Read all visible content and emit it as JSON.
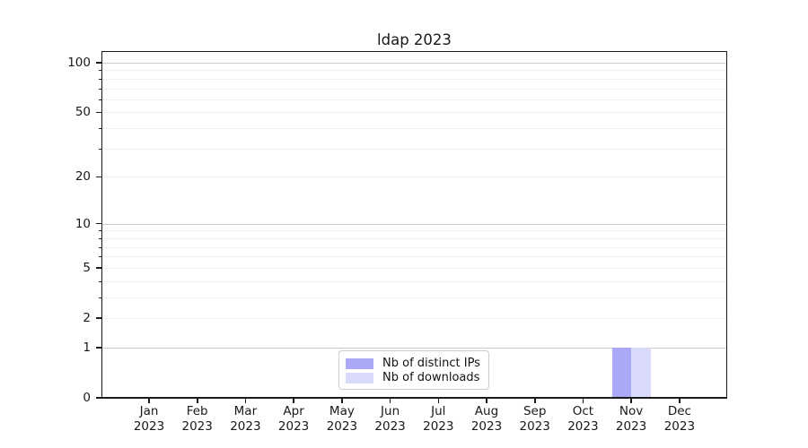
{
  "figure": {
    "background": "#ffffff",
    "spine_color": "#1a1a1a"
  },
  "chart_data": {
    "type": "bar",
    "title": "ldap 2023",
    "xlabel": "",
    "ylabel": "",
    "x_tick_labels": [
      {
        "month": "Jan",
        "year": "2023"
      },
      {
        "month": "Feb",
        "year": "2023"
      },
      {
        "month": "Mar",
        "year": "2023"
      },
      {
        "month": "Apr",
        "year": "2023"
      },
      {
        "month": "May",
        "year": "2023"
      },
      {
        "month": "Jun",
        "year": "2023"
      },
      {
        "month": "Jul",
        "year": "2023"
      },
      {
        "month": "Aug",
        "year": "2023"
      },
      {
        "month": "Sep",
        "year": "2023"
      },
      {
        "month": "Oct",
        "year": "2023"
      },
      {
        "month": "Nov",
        "year": "2023"
      },
      {
        "month": "Dec",
        "year": "2023"
      }
    ],
    "series": [
      {
        "name": "Nb of distinct IPs",
        "color": "#a9a9f7",
        "values": [
          0,
          0,
          0,
          0,
          0,
          0,
          0,
          0,
          0,
          0,
          1,
          0
        ]
      },
      {
        "name": "Nb of downloads",
        "color": "#d9d9f9",
        "values": [
          0,
          0,
          0,
          0,
          0,
          0,
          0,
          0,
          0,
          0,
          1,
          0
        ]
      }
    ],
    "y_axis": {
      "scale": "log1p",
      "ylim": [
        0,
        117
      ],
      "labeled_ticks": [
        0,
        1,
        2,
        5,
        10,
        20,
        50,
        100
      ],
      "emphasis_gridlines": [
        1,
        10,
        100
      ],
      "minor_gridlines": [
        2,
        3,
        4,
        5,
        6,
        7,
        8,
        9,
        20,
        30,
        40,
        50,
        60,
        70,
        80,
        90
      ]
    },
    "grid": {
      "enabled": true,
      "major_color": "#c9c9c9",
      "minor_color": "#efefef"
    },
    "legend": {
      "position": "lower center",
      "border_color": "#cdcdcd",
      "background": "#ffffff"
    }
  }
}
